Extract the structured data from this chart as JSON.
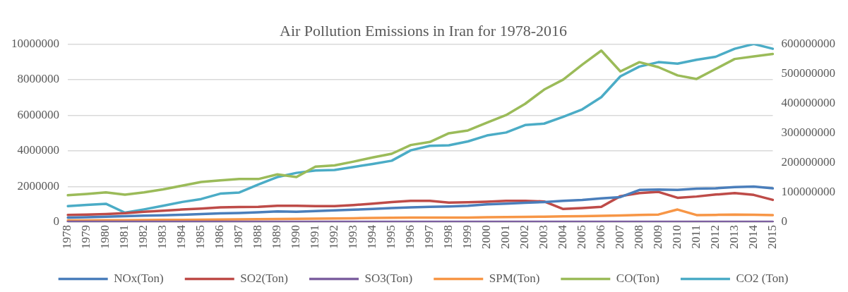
{
  "chart_data": {
    "type": "line",
    "title": "Air Pollution Emissions in Iran for 1978-2016",
    "categories": [
      "1978",
      "1979",
      "1980",
      "1981",
      "1982",
      "1983",
      "1984",
      "1985",
      "1986",
      "1987",
      "1988",
      "1989",
      "1990",
      "1991",
      "1992",
      "1993",
      "1994",
      "1995",
      "1996",
      "1997",
      "1998",
      "1999",
      "2000",
      "2001",
      "2002",
      "2003",
      "2004",
      "2005",
      "2006",
      "2007",
      "2008",
      "2009",
      "2010",
      "2011",
      "2012",
      "2013",
      "2014",
      "2015"
    ],
    "series": [
      {
        "name": "NOx(Ton)",
        "color": "#4a7ebb",
        "values": [
          260000,
          280000,
          310000,
          340000,
          370000,
          390000,
          420000,
          460000,
          490000,
          510000,
          550000,
          600000,
          580000,
          620000,
          660000,
          700000,
          740000,
          790000,
          830000,
          860000,
          880000,
          920000,
          1000000,
          1040000,
          1090000,
          1130000,
          1200000,
          1250000,
          1340000,
          1410000,
          1810000,
          1830000,
          1810000,
          1880000,
          1900000,
          1970000,
          2000000,
          1900000
        ]
      },
      {
        "name": "SO2(Ton)",
        "color": "#be4b48",
        "values": [
          410000,
          430000,
          460000,
          500000,
          580000,
          640000,
          710000,
          760000,
          830000,
          850000,
          860000,
          920000,
          920000,
          900000,
          900000,
          960000,
          1040000,
          1130000,
          1200000,
          1200000,
          1100000,
          1120000,
          1150000,
          1200000,
          1200000,
          1160000,
          740000,
          790000,
          860000,
          1460000,
          1630000,
          1700000,
          1370000,
          1440000,
          1550000,
          1630000,
          1530000,
          1250000
        ]
      },
      {
        "name": "SO3(Ton)",
        "color": "#7d60a0",
        "values": [
          20000,
          20000,
          20000,
          20000,
          20000,
          20000,
          20000,
          20000,
          20000,
          20000,
          20000,
          20000,
          20000,
          20000,
          20000,
          20000,
          20000,
          20000,
          20000,
          20000,
          20000,
          20000,
          20000,
          20000,
          20000,
          20000,
          20000,
          20000,
          20000,
          20000,
          20000,
          20000,
          20000,
          20000,
          20000,
          20000,
          20000,
          20000
        ]
      },
      {
        "name": "SPM(Ton)",
        "color": "#f79646",
        "values": [
          100000,
          100000,
          110000,
          110000,
          120000,
          130000,
          130000,
          140000,
          150000,
          160000,
          170000,
          180000,
          190000,
          200000,
          210000,
          220000,
          240000,
          250000,
          260000,
          260000,
          260000,
          260000,
          280000,
          290000,
          300000,
          310000,
          330000,
          340000,
          360000,
          380000,
          410000,
          430000,
          710000,
          400000,
          410000,
          430000,
          420000,
          400000
        ]
      },
      {
        "name": "CO(Ton)",
        "color": "#9bbb59",
        "values": [
          1510000,
          1580000,
          1670000,
          1540000,
          1670000,
          1840000,
          2050000,
          2260000,
          2350000,
          2420000,
          2420000,
          2680000,
          2530000,
          3120000,
          3190000,
          3400000,
          3630000,
          3840000,
          4330000,
          4500000,
          4990000,
          5150000,
          5590000,
          6010000,
          6640000,
          7440000,
          8000000,
          8840000,
          9630000,
          8460000,
          8980000,
          8700000,
          8240000,
          8040000,
          8600000,
          9160000,
          9300000,
          9440000
        ]
      },
      {
        "name": "CO2 (Ton)",
        "color": "#4bacc6",
        "axis": "y2",
        "values": [
          54000000,
          58000000,
          62000000,
          32000000,
          43000000,
          55000000,
          68000000,
          78000000,
          96000000,
          100000000,
          127000000,
          152000000,
          166000000,
          174000000,
          176000000,
          186000000,
          196000000,
          207000000,
          242000000,
          257000000,
          259000000,
          272000000,
          292000000,
          302000000,
          327000000,
          332000000,
          355000000,
          380000000,
          421000000,
          491000000,
          524000000,
          539000000,
          534000000,
          547000000,
          557000000,
          584000000,
          600000000,
          584000000
        ]
      }
    ],
    "ylim": [
      0,
      10000000
    ],
    "yticks": [
      0,
      2000000,
      4000000,
      6000000,
      8000000,
      10000000
    ],
    "y2lim": [
      0,
      600000000
    ],
    "y2ticks": [
      0,
      100000000,
      200000000,
      300000000,
      400000000,
      500000000,
      600000000
    ],
    "grid": "y",
    "legend": "bottom",
    "marker": "none"
  }
}
